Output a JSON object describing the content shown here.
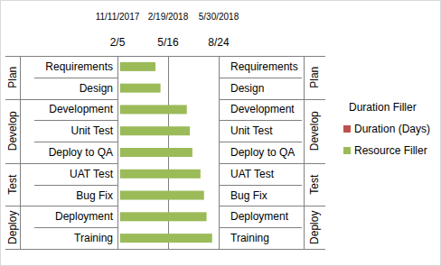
{
  "chart_data": {
    "type": "bar",
    "orientation": "horizontal",
    "stacked": true,
    "categories": [
      "Requirements",
      "Design",
      "Development",
      "Unit Test",
      "Deploy to QA",
      "UAT Test",
      "Bug Fix",
      "Deployment",
      "Training"
    ],
    "category_groups": [
      "Plan",
      "Plan",
      "Develop",
      "Develop",
      "Develop",
      "Test",
      "Test",
      "Deploy",
      "Deploy"
    ],
    "series": [
      {
        "name": "Duration Filler",
        "color": "none",
        "values": [
          43141,
          43141,
          43141,
          43141,
          43141,
          43141,
          43141,
          43141,
          43141
        ]
      },
      {
        "name": "Duration (Days)",
        "color": "#c0504d",
        "values": [
          0,
          0,
          0,
          0,
          0,
          0,
          0,
          0,
          0
        ]
      },
      {
        "name": "Resource Filler",
        "color": "#9bbb59",
        "values": [
          70,
          80,
          132,
          138,
          143,
          159,
          166,
          171,
          182
        ]
      }
    ],
    "ylim": [
      43136,
      43336
    ],
    "yticks": [
      {
        "value": 43136,
        "label": "2/5"
      },
      {
        "value": 43236,
        "label": "5/16"
      },
      {
        "value": 43336,
        "label": "8/24"
      }
    ],
    "y2lim": [
      43050,
      43250
    ],
    "y2ticks": [
      {
        "value": 43050,
        "label": "11/11/2017"
      },
      {
        "value": 43150,
        "label": "2/19/2018"
      },
      {
        "value": 43250,
        "label": "5/30/2018"
      }
    ],
    "grid": true,
    "legend": "right"
  }
}
